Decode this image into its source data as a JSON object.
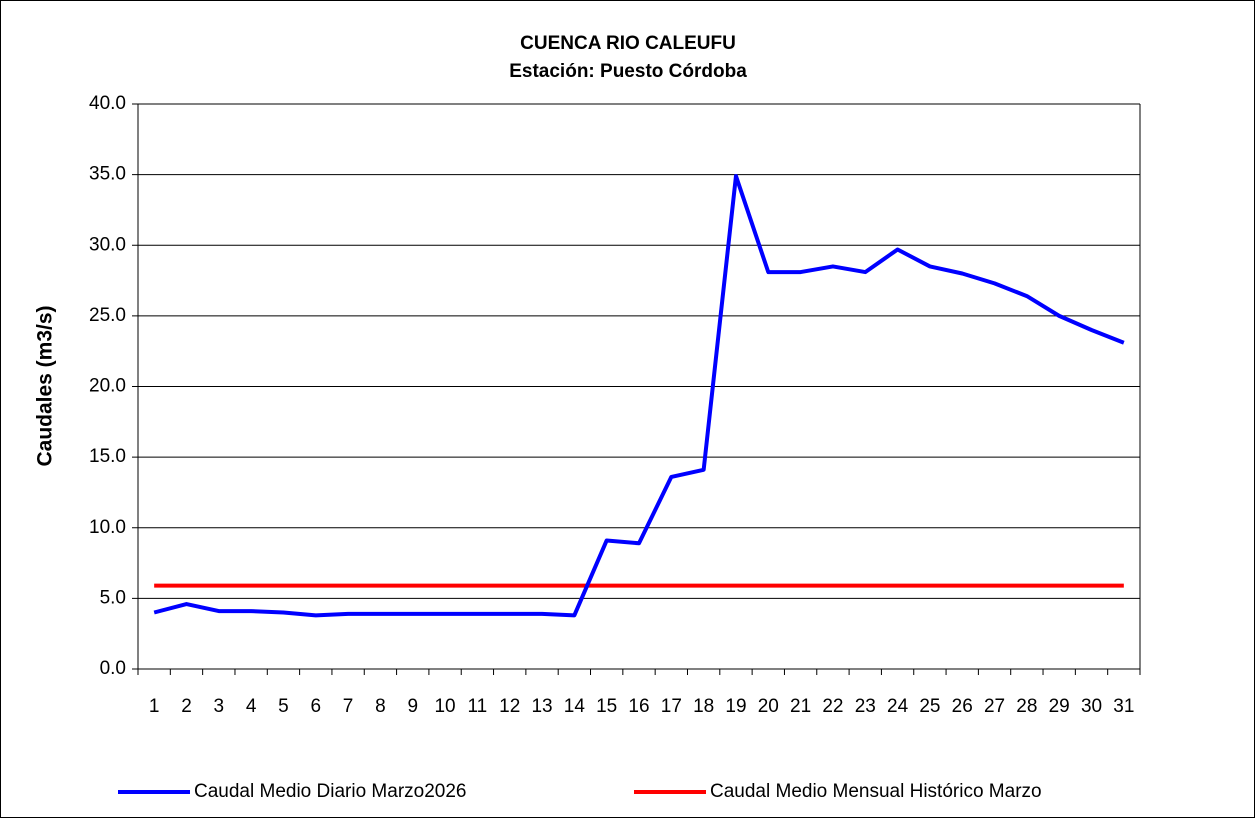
{
  "chart_data": {
    "type": "line",
    "title": "CUENCA RIO CALEUFU",
    "subtitle": "Estación: Puesto Córdoba",
    "y_label": "Caudales (m3/s)",
    "categories": [
      "1",
      "2",
      "3",
      "4",
      "5",
      "6",
      "7",
      "8",
      "9",
      "10",
      "11",
      "12",
      "13",
      "14",
      "15",
      "16",
      "17",
      "18",
      "19",
      "20",
      "21",
      "22",
      "23",
      "24",
      "25",
      "26",
      "27",
      "28",
      "29",
      "30",
      "31"
    ],
    "series": [
      {
        "name": "Caudal Medio Diario Marzo2026",
        "color": "#0000ff",
        "values": [
          4.0,
          4.6,
          4.1,
          4.1,
          4.0,
          3.8,
          3.9,
          3.9,
          3.9,
          3.9,
          3.9,
          3.9,
          3.9,
          3.8,
          9.1,
          8.9,
          13.6,
          14.1,
          34.9,
          28.1,
          28.1,
          28.5,
          28.1,
          29.7,
          28.5,
          28.0,
          27.3,
          26.4,
          25.0,
          24.0,
          23.1
        ]
      },
      {
        "name": "Caudal Medio Mensual Histórico Marzo",
        "color": "#ff0000",
        "values": [
          5.9,
          5.9,
          5.9,
          5.9,
          5.9,
          5.9,
          5.9,
          5.9,
          5.9,
          5.9,
          5.9,
          5.9,
          5.9,
          5.9,
          5.9,
          5.9,
          5.9,
          5.9,
          5.9,
          5.9,
          5.9,
          5.9,
          5.9,
          5.9,
          5.9,
          5.9,
          5.9,
          5.9,
          5.9,
          5.9,
          5.9
        ]
      }
    ],
    "ylim": [
      0,
      40
    ],
    "yticks": [
      {
        "value": 0,
        "label": "0.0"
      },
      {
        "value": 5,
        "label": "5.0"
      },
      {
        "value": 10,
        "label": "10.0"
      },
      {
        "value": 15,
        "label": "15.0"
      },
      {
        "value": 20,
        "label": "20.0"
      },
      {
        "value": 25,
        "label": "25.0"
      },
      {
        "value": 30,
        "label": "30.0"
      },
      {
        "value": 35,
        "label": "35.0"
      },
      {
        "value": 40,
        "label": "40.0"
      }
    ],
    "grid": true,
    "legend": "bottom"
  }
}
